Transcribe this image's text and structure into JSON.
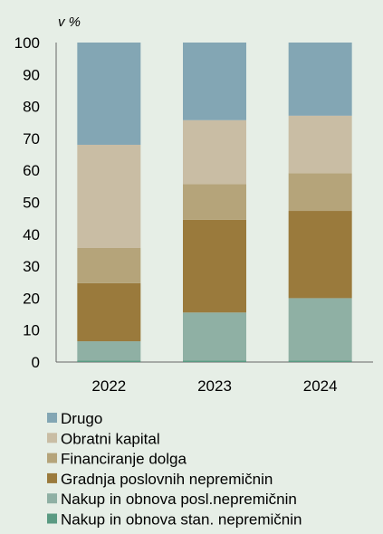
{
  "chart_data": {
    "type": "bar",
    "stacked": true,
    "unit_label": "v %",
    "categories": [
      "2022",
      "2023",
      "2024"
    ],
    "ylim": [
      0,
      100
    ],
    "yticks": [
      0,
      10,
      20,
      30,
      40,
      50,
      60,
      70,
      80,
      90,
      100
    ],
    "grid": false,
    "legend_position": "bottom",
    "series": [
      {
        "name": "Nakup in obnova stan. nepremičnin",
        "color": "#5a9a82",
        "values": [
          0.5,
          0.5,
          0.5
        ]
      },
      {
        "name": "Nakup in obnova posl.nepremičnin",
        "color": "#8fb0a4",
        "values": [
          6.0,
          15.0,
          19.5
        ]
      },
      {
        "name": "Gradnja poslovnih nepremičnin",
        "color": "#9a7a3c",
        "values": [
          18.2,
          29.0,
          27.3
        ]
      },
      {
        "name": "Financiranje dolga",
        "color": "#b5a47a",
        "values": [
          11.0,
          11.2,
          11.8
        ]
      },
      {
        "name": "Obratni kapital",
        "color": "#c9bda4",
        "values": [
          32.3,
          20.0,
          18.0
        ]
      },
      {
        "name": "Drugo",
        "color": "#83a6b4",
        "values": [
          32.0,
          24.3,
          22.9
        ]
      }
    ]
  }
}
